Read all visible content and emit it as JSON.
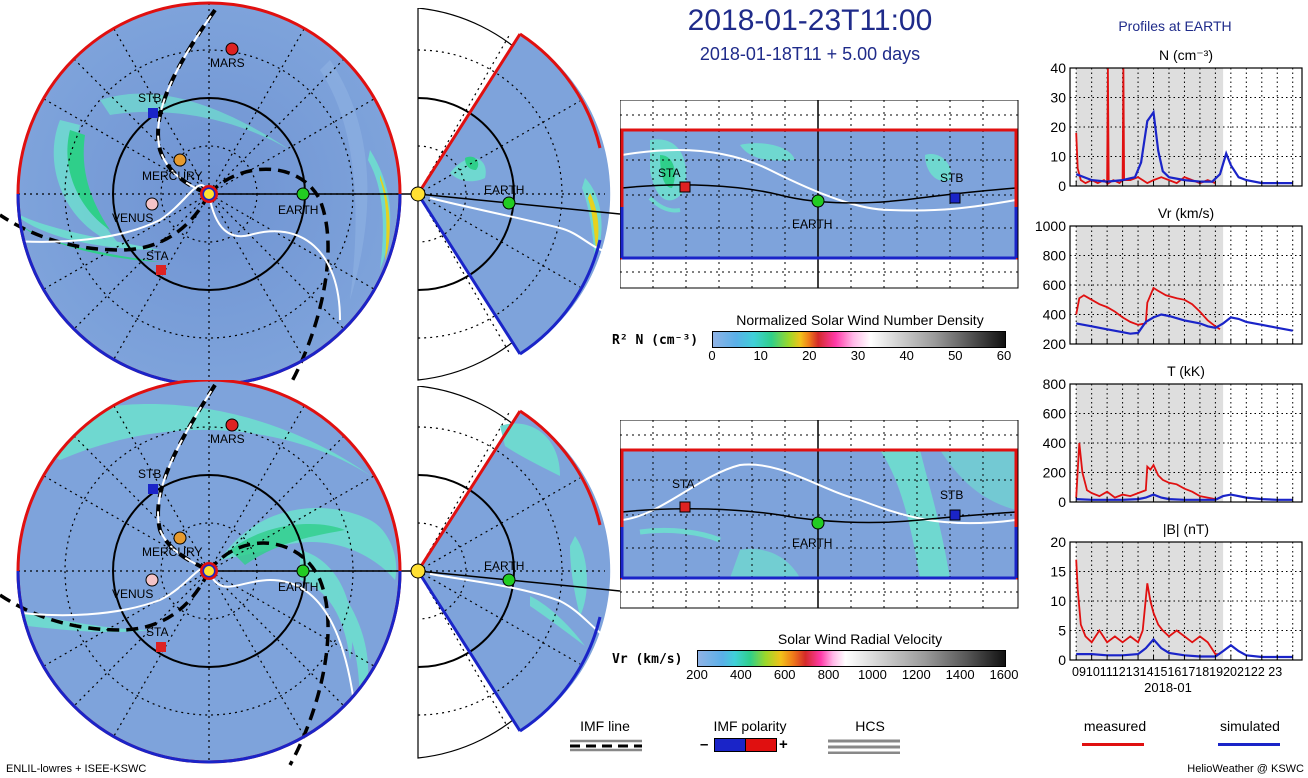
{
  "header": {
    "title": "2018-01-23T11:00",
    "subtitle": "2018-01-18T11 + 5.00 days"
  },
  "bodies": {
    "mars": "MARS",
    "stb": "STB",
    "mercury": "MERCURY",
    "venus": "VENUS",
    "earth": "EARTH",
    "sta": "STA"
  },
  "colorbars": {
    "density": {
      "title": "Normalized Solar Wind Number Density",
      "label": "R² N (cm⁻³)",
      "ticks": [
        "0",
        "10",
        "20",
        "30",
        "40",
        "50",
        "60"
      ]
    },
    "velocity": {
      "title": "Solar Wind Radial Velocity",
      "label": "Vr (km/s)",
      "ticks": [
        "200",
        "400",
        "600",
        "800",
        "1000",
        "1200",
        "1400",
        "1600"
      ]
    }
  },
  "legend": {
    "imf_line": "IMF line",
    "imf_polarity": "IMF polarity",
    "polarity_minus": "–",
    "polarity_plus": "+",
    "hcs": "HCS",
    "measured": "measured",
    "simulated": "simulated"
  },
  "footer": {
    "left": "ENLIL-lowres + ISEE-KSWC",
    "right": "HelioWeather @ KSWC"
  },
  "colors": {
    "title_navy": "#1f2b8a",
    "measured": "#e01010",
    "simulated": "#1a24c8",
    "imf_positive": "#e01010",
    "imf_negative": "#1a24c8",
    "background_field": "#7a9cd6",
    "earth": "#22cc22",
    "mars": "#dd2222",
    "mercury": "#e69a2e",
    "venus": "#f4c4c8",
    "sun": "#ffe033"
  },
  "chart_data": [
    {
      "type": "line",
      "title": "Profiles at EARTH",
      "panel_title": "N (cm⁻³)",
      "ylim": [
        0,
        40
      ],
      "yticks": [
        "0",
        "10",
        "20",
        "30",
        "40"
      ],
      "x_days": [
        9,
        10,
        11,
        12,
        13,
        14,
        15,
        16,
        17,
        18,
        19,
        20,
        21,
        22,
        23
      ],
      "shaded_range": [
        9,
        18.5
      ],
      "series": [
        {
          "name": "measured",
          "x": [
            9,
            9.1,
            9.3,
            9.6,
            10.0,
            10.4,
            10.8,
            11.0,
            11.05,
            11.1,
            11.4,
            11.8,
            12.0,
            12.05,
            12.1,
            12.5,
            13.0,
            13.3,
            13.6,
            14.0,
            14.5,
            15.0,
            15.5,
            16.0,
            16.5,
            17.0,
            17.5,
            18.0
          ],
          "y": [
            18,
            6,
            2,
            1,
            2,
            1,
            2,
            1,
            40,
            1,
            2,
            1,
            2,
            40,
            2,
            2,
            3,
            2,
            1,
            2,
            3,
            2,
            1,
            3,
            2,
            1,
            2,
            1
          ]
        },
        {
          "name": "simulated",
          "x": [
            9,
            10,
            11,
            12,
            12.8,
            13.2,
            13.6,
            14.0,
            14.3,
            14.6,
            15.0,
            16.0,
            17.0,
            17.8,
            18.3,
            18.7,
            19.0,
            19.5,
            20,
            21,
            22,
            23
          ],
          "y": [
            4,
            2,
            1.5,
            2,
            3,
            8,
            22,
            25,
            12,
            5,
            3,
            2,
            1.5,
            1.5,
            4,
            11,
            7,
            3,
            2,
            1,
            1,
            1
          ]
        }
      ]
    },
    {
      "type": "line",
      "panel_title": "Vr (km/s)",
      "ylim": [
        200,
        1000
      ],
      "yticks": [
        "200",
        "400",
        "600",
        "800",
        "1000"
      ],
      "x_days": [
        9,
        10,
        11,
        12,
        13,
        14,
        15,
        16,
        17,
        18,
        19,
        20,
        21,
        22,
        23
      ],
      "shaded_range": [
        9,
        18.5
      ],
      "series": [
        {
          "name": "measured",
          "x": [
            9,
            9.2,
            9.5,
            10,
            10.5,
            11,
            11.5,
            12,
            12.5,
            13,
            13.5,
            13.6,
            14,
            14.3,
            14.8,
            15.5,
            16,
            16.5,
            17,
            17.5,
            18,
            18.3
          ],
          "y": [
            400,
            510,
            530,
            500,
            470,
            450,
            420,
            380,
            350,
            330,
            340,
            480,
            580,
            560,
            530,
            510,
            500,
            470,
            420,
            360,
            320,
            300
          ]
        },
        {
          "name": "simulated",
          "x": [
            9,
            10,
            11,
            12,
            12.5,
            13,
            13.5,
            14,
            14.5,
            15,
            16,
            17,
            17.5,
            18,
            18.5,
            19,
            19.5,
            20,
            21,
            22,
            23
          ],
          "y": [
            340,
            320,
            300,
            280,
            270,
            275,
            350,
            380,
            400,
            390,
            360,
            340,
            320,
            310,
            340,
            380,
            370,
            350,
            330,
            310,
            290
          ]
        }
      ]
    },
    {
      "type": "line",
      "panel_title": "T (kK)",
      "ylim": [
        0,
        800
      ],
      "yticks": [
        "0",
        "200",
        "400",
        "600",
        "800"
      ],
      "x_days": [
        9,
        10,
        11,
        12,
        13,
        14,
        15,
        16,
        17,
        18,
        19,
        20,
        21,
        22,
        23
      ],
      "shaded_range": [
        9,
        18.5
      ],
      "series": [
        {
          "name": "measured",
          "x": [
            9,
            9.2,
            9.4,
            9.7,
            10,
            10.5,
            11,
            11.5,
            12,
            12.5,
            13,
            13.5,
            13.6,
            13.8,
            14.0,
            14.3,
            14.6,
            15,
            15.5,
            16,
            16.5,
            17,
            17.5,
            18
          ],
          "y": [
            30,
            400,
            200,
            80,
            60,
            40,
            70,
            30,
            50,
            40,
            60,
            80,
            240,
            220,
            250,
            180,
            150,
            130,
            120,
            90,
            70,
            40,
            30,
            20
          ]
        },
        {
          "name": "simulated",
          "x": [
            9,
            10,
            11,
            12,
            13,
            13.5,
            14,
            14.5,
            15,
            16,
            17,
            18,
            18.5,
            19,
            20,
            21,
            22,
            23
          ],
          "y": [
            20,
            15,
            15,
            15,
            20,
            30,
            50,
            30,
            20,
            15,
            15,
            15,
            40,
            50,
            30,
            20,
            15,
            15
          ]
        }
      ]
    },
    {
      "type": "line",
      "panel_title": "|B| (nT)",
      "ylim": [
        0,
        20
      ],
      "yticks": [
        "0",
        "5",
        "10",
        "15",
        "20"
      ],
      "x_days": [
        9,
        10,
        11,
        12,
        13,
        14,
        15,
        16,
        17,
        18,
        19,
        20,
        21,
        22,
        23
      ],
      "xtick_labels": [
        "09",
        "10",
        "11",
        "12",
        "13",
        "14",
        "15",
        "16",
        "17",
        "18",
        "19",
        "20",
        "21",
        "22",
        "23"
      ],
      "xtick_text": "0910111213141516171819202122 23",
      "xlabel": "2018-01",
      "shaded_range": [
        9,
        18.5
      ],
      "series": [
        {
          "name": "measured",
          "x": [
            9,
            9.1,
            9.3,
            9.6,
            10,
            10.5,
            11,
            11.5,
            12,
            12.5,
            13,
            13.3,
            13.6,
            13.8,
            14.0,
            14.3,
            14.6,
            15,
            15.5,
            16,
            16.5,
            17,
            17.5,
            18,
            18.3
          ],
          "y": [
            17,
            12,
            6,
            4,
            3,
            5,
            3,
            4,
            3,
            4,
            3,
            5,
            13,
            10,
            8,
            6,
            5,
            4,
            5,
            4,
            3,
            4,
            3,
            1,
            1
          ]
        },
        {
          "name": "simulated",
          "x": [
            9,
            10,
            11,
            12,
            13,
            13.5,
            14,
            14.5,
            15,
            16,
            17,
            18,
            18.5,
            19,
            19.5,
            20,
            21,
            22,
            23
          ],
          "y": [
            1,
            1,
            0.8,
            0.8,
            1,
            2,
            3.5,
            2,
            1.2,
            0.8,
            0.6,
            0.6,
            1.5,
            2.5,
            1.5,
            0.8,
            0.5,
            0.5,
            0.5
          ]
        }
      ]
    }
  ]
}
